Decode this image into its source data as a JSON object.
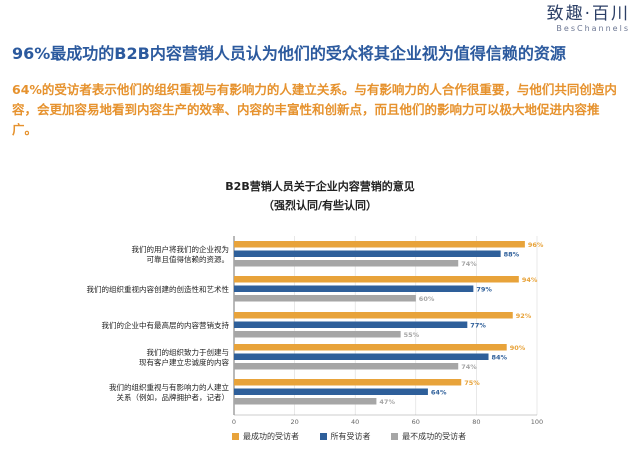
{
  "logo": {
    "main": "致趣·百川",
    "sub": "BesChannels"
  },
  "headline": "96%最成功的B2B内容营销人员认为他们的受众将其企业视为值得信赖的资源",
  "intro": "64%的受访者表示他们的组织重视与有影响力的人建立关系。与有影响力的人合作很重要，与他们共同创造内容，会更加容易地看到内容生产的效率、内容的丰富性和创新点，而且他们的影响力可以极大地促进内容推广。",
  "colors": {
    "series1": "#e8a33a",
    "series2": "#2e5f9a",
    "series3": "#a6a6a6"
  },
  "chart_data": {
    "type": "bar",
    "orientation": "horizontal",
    "title": "B2B营销人员关于企业内容营销的意见",
    "subtitle": "（强烈认同/有些认同）",
    "categories": [
      [
        "我们的用户将我们的企业视为",
        "可靠且值得信赖的资源。"
      ],
      [
        "我们的组织重视内容创建的创造性和艺术性"
      ],
      [
        "我们的企业中有最高层的内容营销支持"
      ],
      [
        "我们的组织致力于创建与",
        "现有客户建立忠诚度的内容"
      ],
      [
        "我们的组织重视与有影响力的人建立",
        "关系（例如，品牌拥护者，记者）"
      ]
    ],
    "series": [
      {
        "name": "最成功的受访者",
        "values": [
          96,
          94,
          92,
          90,
          75
        ],
        "labels": [
          "96%",
          "94%",
          "92%",
          "90%",
          "75%"
        ]
      },
      {
        "name": "所有受访者",
        "values": [
          88,
          79,
          77,
          84,
          64
        ],
        "labels": [
          "88%",
          "79%",
          "77%",
          "84%",
          "64%"
        ]
      },
      {
        "name": "最不成功的受访者",
        "values": [
          74,
          60,
          55,
          74,
          47
        ],
        "labels": [
          "74%",
          "60%",
          "55%",
          "74%",
          "47%"
        ]
      }
    ],
    "xlim": [
      0,
      100
    ],
    "xticks": [
      0,
      20,
      40,
      60,
      80,
      100
    ],
    "xtick_labels": [
      "0",
      "20",
      "40",
      "60",
      "80",
      "100"
    ],
    "legend_position": "bottom"
  }
}
